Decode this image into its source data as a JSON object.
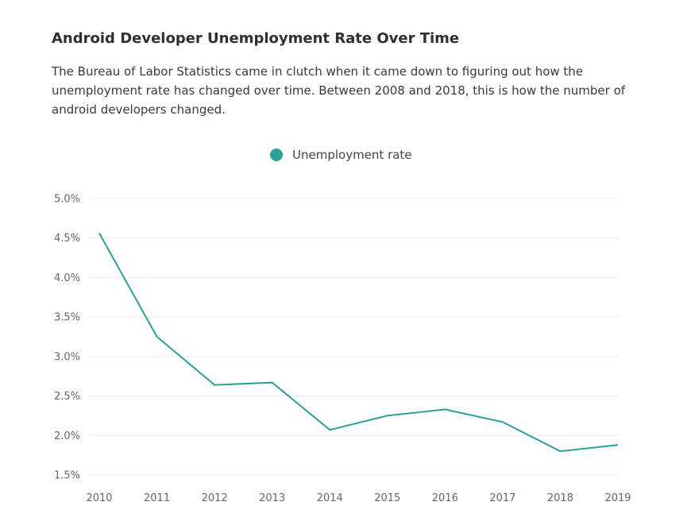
{
  "header": {
    "title": "Android Developer Unemployment Rate Over Time",
    "description": "The Bureau of Labor Statistics came in clutch when it came down to figuring out how the unemployment rate has changed over time. Between 2008 and 2018, this is how the number of android developers changed."
  },
  "colors": {
    "series": "#2aa198",
    "grid": "#ececec"
  },
  "chart_data": {
    "type": "line",
    "title": "",
    "xlabel": "",
    "ylabel": "",
    "legend": "top-center",
    "grid": true,
    "ylim": [
      1.5,
      5.0
    ],
    "yticks": [
      "5.0%",
      "4.5%",
      "4.0%",
      "3.5%",
      "3.0%",
      "2.5%",
      "2.0%",
      "1.5%"
    ],
    "ytick_values": [
      5.0,
      4.5,
      4.0,
      3.5,
      3.0,
      2.5,
      2.0,
      1.5
    ],
    "categories": [
      "2010",
      "2011",
      "2012",
      "2013",
      "2014",
      "2015",
      "2016",
      "2017",
      "2018",
      "2019"
    ],
    "series": [
      {
        "name": "Unemployment rate",
        "values": [
          4.56,
          3.25,
          2.64,
          2.67,
          2.07,
          2.25,
          2.33,
          2.17,
          1.8,
          1.88
        ]
      }
    ]
  }
}
